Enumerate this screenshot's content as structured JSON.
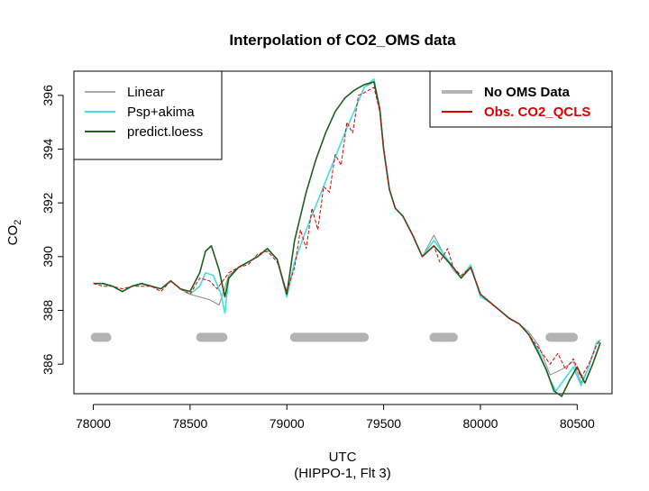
{
  "chart_data": {
    "type": "line",
    "title": "Interpolation of CO2_OMS data",
    "xlabel": "UTC",
    "xlabel_sub": "(HIPPO-1, Flt 3)",
    "ylabel": "CO",
    "ylabel_subscript": "2",
    "xlim": [
      77900,
      80680
    ],
    "ylim": [
      384.9,
      396.9
    ],
    "xticks": [
      78000,
      78500,
      79000,
      79500,
      80000,
      80500
    ],
    "yticks": [
      386,
      388,
      390,
      392,
      394,
      396
    ],
    "legend_left": {
      "placement": "top-left",
      "entries": [
        {
          "label": "Linear",
          "color": "#8c8c8c"
        },
        {
          "label": "Psp+akima",
          "color": "#3fe0e0"
        },
        {
          "label": "predict.loess",
          "color": "#1f5e1f"
        }
      ]
    },
    "legend_right": {
      "placement": "top-right",
      "entries": [
        {
          "label": "No OMS Data",
          "color": "#b3b3b3",
          "text_color": "#000000"
        },
        {
          "label": "Obs. CO2_QCLS",
          "color": "#e00000",
          "text_color": "#e00000"
        }
      ]
    },
    "no_data": {
      "name": "No OMS Data",
      "color": "#b3b3b3",
      "y": 387.0,
      "segments": [
        [
          78010,
          78070
        ],
        [
          78555,
          78670
        ],
        [
          79040,
          79400
        ],
        [
          79760,
          79860
        ],
        [
          80360,
          80480
        ]
      ]
    },
    "series": [
      {
        "name": "Linear",
        "color": "#8c8c8c",
        "x": [
          78000,
          78050,
          78100,
          78150,
          78200,
          78250,
          78300,
          78350,
          78400,
          78450,
          78500,
          78550,
          78600,
          78650,
          78700,
          78750,
          78800,
          78850,
          78900,
          78950,
          79000,
          79040,
          79100,
          79200,
          79300,
          79400,
          79450,
          79480,
          79500,
          79530,
          79560,
          79600,
          79650,
          79700,
          79760,
          79810,
          79860,
          79900,
          79950,
          80000,
          80050,
          80100,
          80150,
          80200,
          80250,
          80300,
          80360,
          80420,
          80480,
          80520,
          80560,
          80600,
          80620
        ],
        "y": [
          389.0,
          389.0,
          388.9,
          388.7,
          388.9,
          389.0,
          388.9,
          388.8,
          389.1,
          388.8,
          388.6,
          388.5,
          388.4,
          388.2,
          389.3,
          389.6,
          389.8,
          390.0,
          390.3,
          389.9,
          388.6,
          389.8,
          391.0,
          392.8,
          394.6,
          396.3,
          396.5,
          395.5,
          394.0,
          392.5,
          391.8,
          391.5,
          390.8,
          390.0,
          390.8,
          390.1,
          389.5,
          389.2,
          389.6,
          388.6,
          388.3,
          388.0,
          387.7,
          387.5,
          387.2,
          386.7,
          385.6,
          385.8,
          386.1,
          385.3,
          385.9,
          386.8,
          386.9
        ]
      },
      {
        "name": "Psp+akima",
        "color": "#3fe0e0",
        "x": [
          78000,
          78050,
          78100,
          78150,
          78200,
          78250,
          78300,
          78350,
          78400,
          78450,
          78500,
          78550,
          78580,
          78620,
          78660,
          78680,
          78700,
          78750,
          78800,
          78850,
          78900,
          78950,
          79000,
          79040,
          79100,
          79200,
          79300,
          79400,
          79450,
          79480,
          79500,
          79530,
          79560,
          79600,
          79650,
          79700,
          79760,
          79810,
          79860,
          79900,
          79950,
          80000,
          80050,
          80100,
          80150,
          80200,
          80250,
          80300,
          80360,
          80390,
          80420,
          80480,
          80520,
          80560,
          80600,
          80620
        ],
        "y": [
          389.0,
          389.0,
          388.9,
          388.7,
          388.9,
          389.0,
          388.9,
          388.8,
          389.1,
          388.8,
          388.6,
          388.9,
          389.4,
          389.3,
          388.6,
          387.9,
          389.2,
          389.6,
          389.8,
          390.0,
          390.3,
          389.9,
          388.5,
          389.8,
          391.0,
          392.8,
          394.6,
          396.3,
          396.6,
          395.5,
          394.0,
          392.5,
          391.8,
          391.5,
          390.8,
          390.0,
          390.6,
          390.1,
          389.6,
          389.2,
          389.7,
          388.5,
          388.3,
          388.0,
          387.7,
          387.5,
          387.1,
          386.5,
          385.4,
          385.0,
          385.3,
          385.9,
          385.2,
          385.9,
          386.8,
          386.9
        ]
      },
      {
        "name": "predict.loess",
        "color": "#1f5e1f",
        "x": [
          78000,
          78050,
          78100,
          78150,
          78200,
          78250,
          78300,
          78350,
          78400,
          78450,
          78500,
          78550,
          78580,
          78610,
          78650,
          78680,
          78700,
          78750,
          78800,
          78850,
          78900,
          78950,
          79000,
          79040,
          79100,
          79150,
          79200,
          79250,
          79300,
          79350,
          79400,
          79450,
          79480,
          79500,
          79530,
          79560,
          79600,
          79650,
          79700,
          79760,
          79810,
          79860,
          79900,
          79950,
          80000,
          80050,
          80100,
          80150,
          80200,
          80250,
          80300,
          80340,
          80380,
          80420,
          80460,
          80500,
          80540,
          80580,
          80620
        ],
        "y": [
          389.0,
          389.0,
          388.9,
          388.7,
          388.9,
          389.0,
          388.9,
          388.8,
          389.1,
          388.8,
          388.7,
          389.4,
          390.2,
          390.4,
          389.5,
          388.5,
          389.2,
          389.6,
          389.8,
          390.0,
          390.3,
          389.9,
          388.6,
          390.6,
          392.4,
          393.6,
          394.6,
          395.4,
          395.9,
          396.2,
          396.4,
          396.5,
          395.5,
          394.0,
          392.5,
          391.8,
          391.5,
          390.8,
          390.0,
          390.4,
          390.0,
          389.6,
          389.2,
          389.6,
          388.6,
          388.3,
          388.0,
          387.7,
          387.5,
          387.1,
          386.4,
          385.8,
          385.0,
          384.8,
          385.4,
          385.9,
          385.3,
          386.0,
          386.8
        ]
      },
      {
        "name": "Obs. CO2_QCLS",
        "color": "#e00000",
        "x": [
          78000,
          78050,
          78100,
          78150,
          78200,
          78250,
          78300,
          78350,
          78400,
          78450,
          78500,
          78550,
          78600,
          78640,
          78700,
          78750,
          78800,
          78850,
          78900,
          78950,
          79000,
          79040,
          79070,
          79100,
          79130,
          79160,
          79190,
          79220,
          79250,
          79280,
          79310,
          79340,
          79370,
          79400,
          79450,
          79480,
          79500,
          79530,
          79560,
          79600,
          79650,
          79700,
          79760,
          79790,
          79830,
          79860,
          79900,
          79950,
          80000,
          80050,
          80100,
          80150,
          80200,
          80250,
          80300,
          80360,
          80400,
          80440,
          80480,
          80520,
          80560,
          80600,
          80620
        ],
        "y": [
          389.0,
          388.9,
          388.9,
          388.8,
          388.9,
          388.9,
          388.9,
          388.7,
          389.1,
          388.8,
          388.6,
          389.2,
          389.1,
          388.8,
          389.4,
          389.6,
          389.7,
          390.1,
          390.2,
          389.8,
          388.7,
          389.6,
          391.0,
          390.3,
          391.8,
          391.0,
          392.6,
          392.4,
          393.8,
          393.4,
          395.0,
          394.6,
          396.0,
          396.1,
          396.3,
          395.4,
          394.0,
          392.5,
          391.8,
          391.5,
          390.8,
          390.0,
          390.4,
          389.8,
          390.3,
          389.6,
          389.3,
          389.6,
          388.6,
          388.3,
          388.0,
          387.7,
          387.5,
          387.1,
          386.6,
          386.0,
          386.4,
          385.8,
          386.2,
          385.5,
          386.0,
          386.7,
          386.9
        ]
      }
    ],
    "grid": false
  }
}
